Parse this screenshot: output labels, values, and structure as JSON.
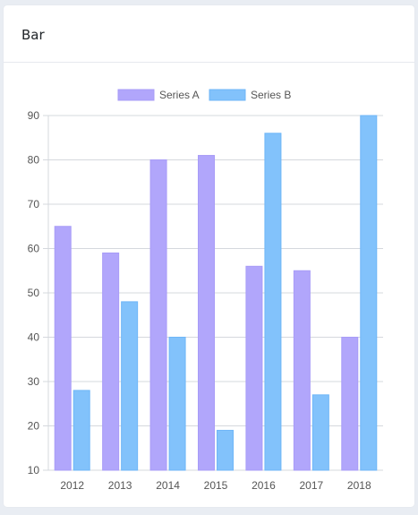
{
  "card": {
    "title": "Bar"
  },
  "colors": {
    "series_a_fill": "#b1a6fb",
    "series_a_stroke": "#a89cf7",
    "series_b_fill": "#82c2fb",
    "series_b_stroke": "#6fb6f7",
    "grid": "#d5d8dd",
    "axis_text": "#555555"
  },
  "chart_data": {
    "type": "bar",
    "categories": [
      "2012",
      "2013",
      "2014",
      "2015",
      "2016",
      "2017",
      "2018"
    ],
    "series": [
      {
        "name": "Series A",
        "values": [
          65,
          59,
          80,
          81,
          56,
          55,
          40
        ]
      },
      {
        "name": "Series B",
        "values": [
          28,
          48,
          40,
          19,
          86,
          27,
          90
        ]
      }
    ],
    "ylim": [
      10,
      90
    ],
    "yticks": [
      10,
      20,
      30,
      40,
      50,
      60,
      70,
      80,
      90
    ],
    "grid": true,
    "legend": "top-center"
  }
}
